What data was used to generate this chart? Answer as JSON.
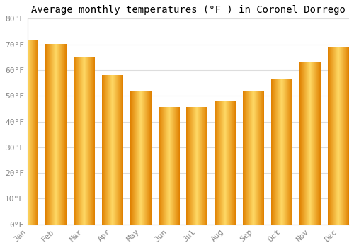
{
  "title": "Average monthly temperatures (°F ) in Coronel Dorrego",
  "months": [
    "Jan",
    "Feb",
    "Mar",
    "Apr",
    "May",
    "Jun",
    "Jul",
    "Aug",
    "Sep",
    "Oct",
    "Nov",
    "Dec"
  ],
  "values": [
    71.5,
    70.0,
    65.0,
    58.0,
    51.5,
    45.5,
    45.5,
    48.0,
    52.0,
    56.5,
    63.0,
    69.0
  ],
  "bar_color_main": "#FFA500",
  "bar_color_light": "#FFD966",
  "bar_color_dark": "#E08000",
  "ylim": [
    0,
    80
  ],
  "yticks": [
    0,
    10,
    20,
    30,
    40,
    50,
    60,
    70,
    80
  ],
  "ytick_labels": [
    "0°F",
    "10°F",
    "20°F",
    "30°F",
    "40°F",
    "50°F",
    "60°F",
    "70°F",
    "80°F"
  ],
  "bg_color": "#FFFFFF",
  "plot_bg_color": "#FFFFFF",
  "grid_color": "#DDDDDD",
  "title_fontsize": 10,
  "tick_fontsize": 8,
  "tick_color": "#888888",
  "title_font_family": "monospace",
  "bar_width": 0.75
}
